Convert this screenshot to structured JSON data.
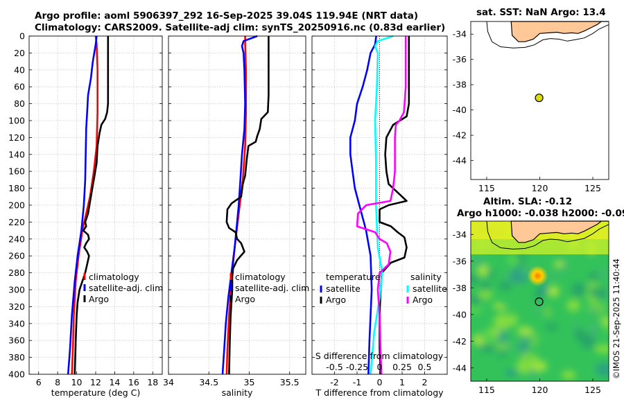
{
  "titles": {
    "line1": "Argo profile: aoml 5906397_292 16-Sep-2025 39.04S 119.94E (NRT data)",
    "line2": "Climatology: CARS2009. Satellite-adj clim: synTS_20250916.nc (0.83d earlier)"
  },
  "watermark": "©IMOS 21-Sep-2025 11:40:44",
  "depth_ticks": [
    0,
    20,
    40,
    60,
    80,
    100,
    120,
    140,
    160,
    180,
    200,
    220,
    240,
    260,
    280,
    300,
    320,
    340,
    360,
    380,
    400
  ],
  "colors": {
    "climatology": "#ff0000",
    "satellite": "#0000ff",
    "argo": "#000000",
    "s_sat": "#00ffff",
    "s_argo": "#ff00ff",
    "land": "#ffc896",
    "marker": "#dddd00"
  },
  "chart_data": [
    {
      "type": "line",
      "id": "temperature",
      "xlabel": "temperature (deg C)",
      "xlim": [
        5,
        19
      ],
      "xticks": [
        6,
        8,
        10,
        12,
        14,
        16,
        18
      ],
      "ylim": [
        0,
        400
      ],
      "grid": true,
      "legend": [
        "climatology",
        "satellite-adj. clim",
        "Argo"
      ],
      "series": [
        {
          "name": "climatology",
          "color": "#ff0000",
          "points": [
            [
              12.0,
              0
            ],
            [
              12.1,
              10
            ],
            [
              12.2,
              40
            ],
            [
              12.2,
              90
            ],
            [
              12.1,
              130
            ],
            [
              11.8,
              160
            ],
            [
              11.4,
              190
            ],
            [
              11.0,
              210
            ],
            [
              10.6,
              230
            ],
            [
              10.2,
              260
            ],
            [
              9.9,
              290
            ],
            [
              9.7,
              330
            ],
            [
              9.6,
              370
            ],
            [
              9.5,
              400
            ]
          ]
        },
        {
          "name": "satellite-adj. clim",
          "color": "#0000ff",
          "points": [
            [
              12.1,
              0
            ],
            [
              12.0,
              10
            ],
            [
              11.7,
              30
            ],
            [
              11.5,
              50
            ],
            [
              11.2,
              70
            ],
            [
              11.1,
              90
            ],
            [
              11.0,
              110
            ],
            [
              10.95,
              140
            ],
            [
              10.9,
              170
            ],
            [
              10.75,
              200
            ],
            [
              10.5,
              230
            ],
            [
              10.1,
              260
            ],
            [
              9.8,
              290
            ],
            [
              9.5,
              330
            ],
            [
              9.3,
              370
            ],
            [
              9.1,
              400
            ]
          ]
        },
        {
          "name": "Argo",
          "color": "#000000",
          "points": [
            [
              13.3,
              0
            ],
            [
              13.3,
              80
            ],
            [
              13.2,
              90
            ],
            [
              13.0,
              98
            ],
            [
              12.6,
              105
            ],
            [
              12.4,
              115
            ],
            [
              12.2,
              130
            ],
            [
              12.1,
              150
            ],
            [
              11.8,
              170
            ],
            [
              11.5,
              190
            ],
            [
              11.2,
              210
            ],
            [
              10.9,
              220
            ],
            [
              11.0,
              225
            ],
            [
              10.7,
              230
            ],
            [
              11.2,
              235
            ],
            [
              11.3,
              240
            ],
            [
              11.0,
              245
            ],
            [
              10.8,
              250
            ],
            [
              11.1,
              255
            ],
            [
              11.3,
              260
            ],
            [
              11.1,
              270
            ],
            [
              10.9,
              280
            ],
            [
              10.6,
              290
            ],
            [
              10.3,
              300
            ],
            [
              10.1,
              315
            ],
            [
              10.0,
              330
            ],
            [
              9.9,
              360
            ],
            [
              9.8,
              400
            ]
          ]
        }
      ]
    },
    {
      "type": "line",
      "id": "salinity",
      "xlabel": "salinity",
      "xlim": [
        34,
        35.7
      ],
      "xticks": [
        34,
        34.5,
        35,
        35.5
      ],
      "ylim": [
        0,
        400
      ],
      "grid": true,
      "legend": [
        "climatology",
        "satellite-adj. clim",
        "Argo"
      ],
      "series": [
        {
          "name": "climatology",
          "color": "#ff0000",
          "points": [
            [
              34.95,
              0
            ],
            [
              34.95,
              10
            ],
            [
              34.96,
              40
            ],
            [
              34.96,
              90
            ],
            [
              34.95,
              130
            ],
            [
              34.92,
              170
            ],
            [
              34.87,
              210
            ],
            [
              34.82,
              250
            ],
            [
              34.78,
              290
            ],
            [
              34.75,
              330
            ],
            [
              34.73,
              370
            ],
            [
              34.72,
              400
            ]
          ]
        },
        {
          "name": "satellite-adj. clim",
          "color": "#0000ff",
          "points": [
            [
              35.1,
              0
            ],
            [
              34.93,
              6
            ],
            [
              34.91,
              12
            ],
            [
              34.93,
              20
            ],
            [
              34.94,
              40
            ],
            [
              34.95,
              80
            ],
            [
              34.94,
              110
            ],
            [
              34.91,
              140
            ],
            [
              34.89,
              170
            ],
            [
              34.87,
              200
            ],
            [
              34.85,
              220
            ],
            [
              34.82,
              250
            ],
            [
              34.78,
              280
            ],
            [
              34.74,
              310
            ],
            [
              34.71,
              340
            ],
            [
              34.69,
              370
            ],
            [
              34.67,
              400
            ]
          ]
        },
        {
          "name": "Argo",
          "color": "#000000",
          "points": [
            [
              35.24,
              0
            ],
            [
              35.24,
              70
            ],
            [
              35.23,
              90
            ],
            [
              35.15,
              98
            ],
            [
              35.13,
              110
            ],
            [
              35.1,
              118
            ],
            [
              35.08,
              125
            ],
            [
              34.99,
              130
            ],
            [
              34.97,
              145
            ],
            [
              34.95,
              165
            ],
            [
              34.92,
              175
            ],
            [
              34.9,
              190
            ],
            [
              34.78,
              198
            ],
            [
              34.73,
              205
            ],
            [
              34.72,
              220
            ],
            [
              34.75,
              227
            ],
            [
              34.83,
              232
            ],
            [
              34.85,
              240
            ],
            [
              34.9,
              245
            ],
            [
              34.94,
              255
            ],
            [
              34.85,
              265
            ],
            [
              34.8,
              275
            ],
            [
              34.79,
              285
            ],
            [
              34.79,
              300
            ],
            [
              34.77,
              330
            ],
            [
              34.76,
              360
            ],
            [
              34.75,
              400
            ]
          ]
        }
      ]
    },
    {
      "type": "line",
      "id": "differences",
      "xlabel": "T difference from climatology",
      "xlabel_top": "S difference from climatology",
      "xlim": [
        -3,
        3
      ],
      "xticks": [
        -2,
        -1,
        0,
        1,
        2
      ],
      "s_xticks": [
        -0.5,
        -0.25,
        0,
        0.25,
        0.5
      ],
      "s_tick_labels": [
        "-0.5",
        "-0.25",
        "0",
        "0.25",
        "0.5"
      ],
      "ylim": [
        0,
        400
      ],
      "grid": true,
      "legend": {
        "temperature": "temperature",
        "salinity": "salinity",
        "satellite": "satellite",
        "argo": "Argo"
      },
      "series": [
        {
          "name": "temperature satellite",
          "color": "#0000ff",
          "points": [
            [
              -0.15,
              0
            ],
            [
              -0.2,
              10
            ],
            [
              -0.4,
              20
            ],
            [
              -0.55,
              40
            ],
            [
              -0.75,
              60
            ],
            [
              -1.0,
              80
            ],
            [
              -1.1,
              100
            ],
            [
              -1.3,
              120
            ],
            [
              -1.3,
              140
            ],
            [
              -1.2,
              160
            ],
            [
              -1.1,
              180
            ],
            [
              -0.9,
              200
            ],
            [
              -0.6,
              230
            ],
            [
              -0.4,
              260
            ],
            [
              -0.35,
              300
            ],
            [
              -0.4,
              330
            ],
            [
              -0.45,
              360
            ],
            [
              -0.5,
              400
            ]
          ]
        },
        {
          "name": "temperature Argo",
          "color": "#000000",
          "points": [
            [
              1.3,
              0
            ],
            [
              1.3,
              80
            ],
            [
              1.2,
              95
            ],
            [
              0.6,
              105
            ],
            [
              0.3,
              120
            ],
            [
              0.25,
              140
            ],
            [
              0.3,
              160
            ],
            [
              0.4,
              175
            ],
            [
              0.8,
              185
            ],
            [
              1.2,
              195
            ],
            [
              0.4,
              200
            ],
            [
              0.0,
              205
            ],
            [
              0.0,
              220
            ],
            [
              0.5,
              225
            ],
            [
              0.8,
              232
            ],
            [
              1.1,
              238
            ],
            [
              1.2,
              250
            ],
            [
              1.1,
              262
            ],
            [
              0.5,
              268
            ],
            [
              0.1,
              280
            ],
            [
              0.05,
              300
            ],
            [
              0.0,
              330
            ],
            [
              0.0,
              370
            ],
            [
              0.05,
              400
            ]
          ]
        },
        {
          "name": "salinity satellite",
          "color": "#00ffff",
          "points": [
            [
              0.15,
              0
            ],
            [
              -0.02,
              6
            ],
            [
              -0.05,
              12
            ],
            [
              -0.02,
              20
            ],
            [
              -0.03,
              60
            ],
            [
              -0.05,
              100
            ],
            [
              -0.04,
              150
            ],
            [
              -0.04,
              200
            ],
            [
              -0.02,
              250
            ],
            [
              0.03,
              280
            ],
            [
              0.0,
              310
            ],
            [
              -0.06,
              350
            ],
            [
              -0.1,
              400
            ]
          ]
        },
        {
          "name": "salinity Argo",
          "color": "#ff00ff",
          "points": [
            [
              0.29,
              0
            ],
            [
              0.29,
              60
            ],
            [
              0.27,
              90
            ],
            [
              0.22,
              100
            ],
            [
              0.18,
              105
            ],
            [
              0.17,
              120
            ],
            [
              0.17,
              140
            ],
            [
              0.17,
              160
            ],
            [
              0.15,
              180
            ],
            [
              0.12,
              195
            ],
            [
              -0.15,
              200
            ],
            [
              -0.24,
              210
            ],
            [
              -0.25,
              225
            ],
            [
              -0.05,
              232
            ],
            [
              0.0,
              240
            ],
            [
              0.08,
              245
            ],
            [
              0.12,
              255
            ],
            [
              0.1,
              270
            ],
            [
              0.0,
              280
            ],
            [
              -0.02,
              300
            ],
            [
              0.0,
              330
            ],
            [
              0.01,
              370
            ],
            [
              0.02,
              400
            ]
          ]
        }
      ]
    },
    {
      "type": "map",
      "id": "sst_map",
      "title": "sat. SST: NaN Argo: 13.4",
      "xlim": [
        113.5,
        126.5
      ],
      "ylim": [
        -45.5,
        -33
      ],
      "xticks": [
        115,
        120,
        125
      ],
      "yticks": [
        -34,
        -36,
        -38,
        -40,
        -42,
        -44
      ],
      "profile_location": [
        119.94,
        -39.04
      ]
    },
    {
      "type": "heatmap",
      "id": "sla_map",
      "title1": "Altim. SLA: -0.12",
      "title2": "Argo h1000: -0.038 h2000: -0.09",
      "xlim": [
        113.5,
        126.5
      ],
      "ylim": [
        -45,
        -33
      ],
      "xticks": [
        115,
        120,
        125
      ],
      "yticks": [
        -34,
        -36,
        -38,
        -40,
        -42,
        -44
      ],
      "profile_location": [
        119.94,
        -39.04
      ],
      "warm_eddy": [
        119.8,
        -37.1
      ]
    }
  ]
}
